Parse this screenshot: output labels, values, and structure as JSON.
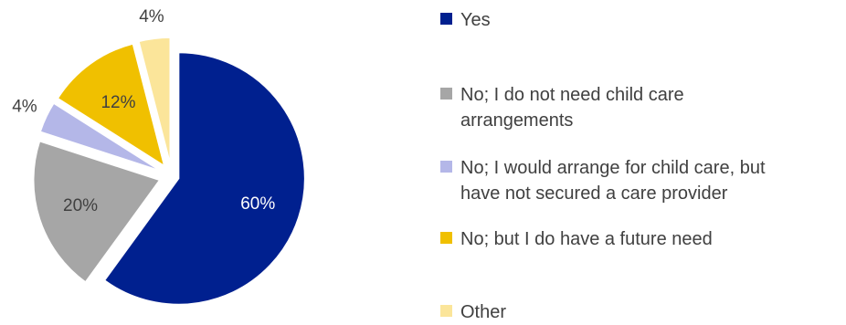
{
  "chart_data": {
    "type": "pie",
    "title": "",
    "categories": [
      "Yes",
      "No; I do not need child care arrangements",
      "No; I would arrange for child care, but have not secured a care provider",
      "No; but I do have a future need",
      "Other"
    ],
    "values": [
      60,
      20,
      4,
      12,
      4
    ],
    "labels": [
      "60%",
      "20%",
      "4%",
      "12%",
      "4%"
    ],
    "colors": [
      "#00208f",
      "#a6a6a6",
      "#b4b7e8",
      "#f0c000",
      "#fbe59a"
    ],
    "exploded": true,
    "legend_position": "right",
    "legend": [
      {
        "lines": [
          "Yes"
        ]
      },
      {
        "lines": [
          "No; I do not need child care",
          "arrangements"
        ]
      },
      {
        "lines": [
          "No; I would arrange for child care, but",
          "have not secured a care provider"
        ]
      },
      {
        "lines": [
          "No; but I do have a future need"
        ]
      },
      {
        "lines": [
          "Other"
        ]
      }
    ]
  }
}
